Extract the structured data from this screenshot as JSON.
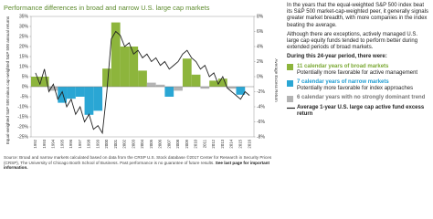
{
  "chart_data": {
    "type": "bar",
    "title": "Performance differences in broad and narrow U.S. large cap markets",
    "y_label": "Equal-weighted S&P 500 minus cap-weighted S&P 500 annual returns",
    "y2_label": "Average Excess Return",
    "categories": [
      "1992",
      "1993",
      "1994",
      "1995",
      "1996",
      "1997",
      "1998",
      "1999",
      "2000",
      "2001",
      "2002",
      "2003",
      "2004",
      "2005",
      "2006",
      "2007",
      "2008",
      "2009",
      "2010",
      "2011",
      "2012",
      "2013",
      "2014",
      "2015",
      "2016"
    ],
    "values": [
      5,
      5,
      -2,
      -8,
      -6,
      -5,
      -14,
      -12,
      9,
      32,
      20,
      20,
      8,
      2,
      1,
      -5,
      -2,
      14,
      6,
      -1,
      3,
      4,
      -1,
      -4,
      null
    ],
    "bar_colors": [
      "#8db53c",
      "#8db53c",
      "#b4b4b4",
      "#2aa6d4",
      "#2aa6d4",
      "#2aa6d4",
      "#2aa6d4",
      "#2aa6d4",
      "#8db53c",
      "#8db53c",
      "#8db53c",
      "#8db53c",
      "#8db53c",
      "#b4b4b4",
      "#b4b4b4",
      "#2aa6d4",
      "#b4b4b4",
      "#8db53c",
      "#8db53c",
      "#b4b4b4",
      "#8db53c",
      "#8db53c",
      "#b4b4b4",
      "#2aa6d4",
      "#b4b4b4"
    ],
    "ylim": [
      -25,
      35
    ],
    "yticks": [
      {
        "value": -25,
        "label": "-25%"
      },
      {
        "value": -20,
        "label": "-20%"
      },
      {
        "value": -15,
        "label": "-15%"
      },
      {
        "value": -10,
        "label": "-10%"
      },
      {
        "value": -5,
        "label": "-5%"
      },
      {
        "value": 0,
        "label": "0%"
      },
      {
        "value": 5,
        "label": "5%"
      },
      {
        "value": 10,
        "label": "10%"
      },
      {
        "value": 15,
        "label": "15%"
      },
      {
        "value": 20,
        "label": "20%"
      },
      {
        "value": 25,
        "label": "25%"
      },
      {
        "value": 30,
        "label": "30%"
      },
      {
        "value": 35,
        "label": "35%"
      }
    ],
    "y2lim": [
      -8,
      8
    ],
    "y2ticks": [
      {
        "value": -8,
        "label": "-8%"
      },
      {
        "value": -6,
        "label": "-6%"
      },
      {
        "value": -4,
        "label": "-4%"
      },
      {
        "value": -2,
        "label": "-2%"
      },
      {
        "value": 0,
        "label": "0%"
      },
      {
        "value": 2,
        "label": "2%"
      },
      {
        "value": 4,
        "label": "4%"
      },
      {
        "value": 6,
        "label": "6%"
      },
      {
        "value": 8,
        "label": "8%"
      }
    ],
    "series": [
      {
        "name": "Average 1-year U.S. large cap active fund excess return",
        "type": "line",
        "axis": "y2",
        "color": "#222222",
        "x": [
          1992,
          1992.5,
          1993,
          1993.5,
          1994,
          1994.5,
          1995,
          1995.5,
          1996,
          1996.5,
          1997,
          1997.5,
          1998,
          1998.5,
          1999,
          1999.5,
          2000,
          2000.5,
          2001,
          2001.5,
          2002,
          2002.5,
          2003,
          2003.5,
          2004,
          2004.5,
          2005,
          2005.5,
          2006,
          2006.5,
          2007,
          2007.5,
          2008,
          2008.5,
          2009,
          2009.5,
          2010,
          2010.5,
          2011,
          2011.5,
          2012,
          2012.5,
          2013,
          2013.5,
          2014,
          2014.5,
          2015,
          2015.5,
          2016
        ],
        "values": [
          0.5,
          -1,
          1,
          -2,
          -1,
          -3,
          -2,
          -4,
          -3,
          -5,
          -4,
          -6,
          -5,
          -7,
          -6.5,
          -7.5,
          -2,
          5,
          6,
          5.5,
          4,
          4.5,
          3,
          3.5,
          2.5,
          3,
          2,
          2.5,
          1.5,
          2,
          1,
          1.5,
          2,
          3,
          3.5,
          2.5,
          2,
          1,
          1.5,
          0,
          0.5,
          -1,
          0,
          -1.5,
          -2,
          -2.5,
          -3,
          -2,
          -2.5
        ]
      }
    ]
  },
  "source": {
    "text": "Source: Broad and narrow markets calculated based on data from the CRSP U.S. Stock database ©2017 Center for Research in Security Prices (CRSP), The University of Chicago Booth School of Business. Past performance is no guarantee of future results.",
    "link": "See last page for important information."
  },
  "panel": {
    "intro": "In the years that the equal-weighted S&P 500 index beat its S&P 500 market-cap-weighted peer, it generally signals greater market breadth, with more companies in the index beating the average.",
    "body": "Although there are exceptions, actively managed U.S. large cap equity funds tended to perform better during extended periods of broad markets.",
    "lead": "During this 24-year period, there were:",
    "items": [
      {
        "label": "11 calendar years of broad markets",
        "note": "Potentially more favorable for active management"
      },
      {
        "label": "7 calendar years of narrow markets",
        "note": "Potentially more favorable for index approaches"
      },
      {
        "label": "6 calendar years with no strongly dominant trend"
      }
    ]
  }
}
